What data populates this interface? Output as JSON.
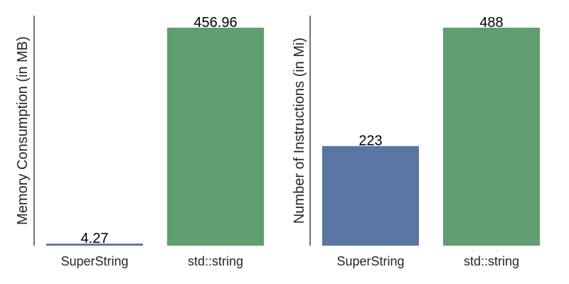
{
  "chart_data": [
    {
      "type": "bar",
      "categories": [
        "SuperString",
        "std::string"
      ],
      "values": [
        4.27,
        456.96
      ],
      "value_labels": [
        "4.27",
        "456.96"
      ],
      "xlabel": "",
      "ylabel": "Memory Consumption (in MB)",
      "ylim": [
        0,
        456.96
      ],
      "colors": [
        "#5975a4",
        "#5f9e6e"
      ],
      "grid": false,
      "yticks_shown": false
    },
    {
      "type": "bar",
      "categories": [
        "SuperString",
        "std::string"
      ],
      "values": [
        223,
        488
      ],
      "value_labels": [
        "223",
        "488"
      ],
      "xlabel": "",
      "ylabel": "Number of Instructions (in Mi)",
      "ylim": [
        0,
        488
      ],
      "colors": [
        "#5975a4",
        "#5f9e6e"
      ],
      "grid": false,
      "yticks_shown": false
    }
  ]
}
